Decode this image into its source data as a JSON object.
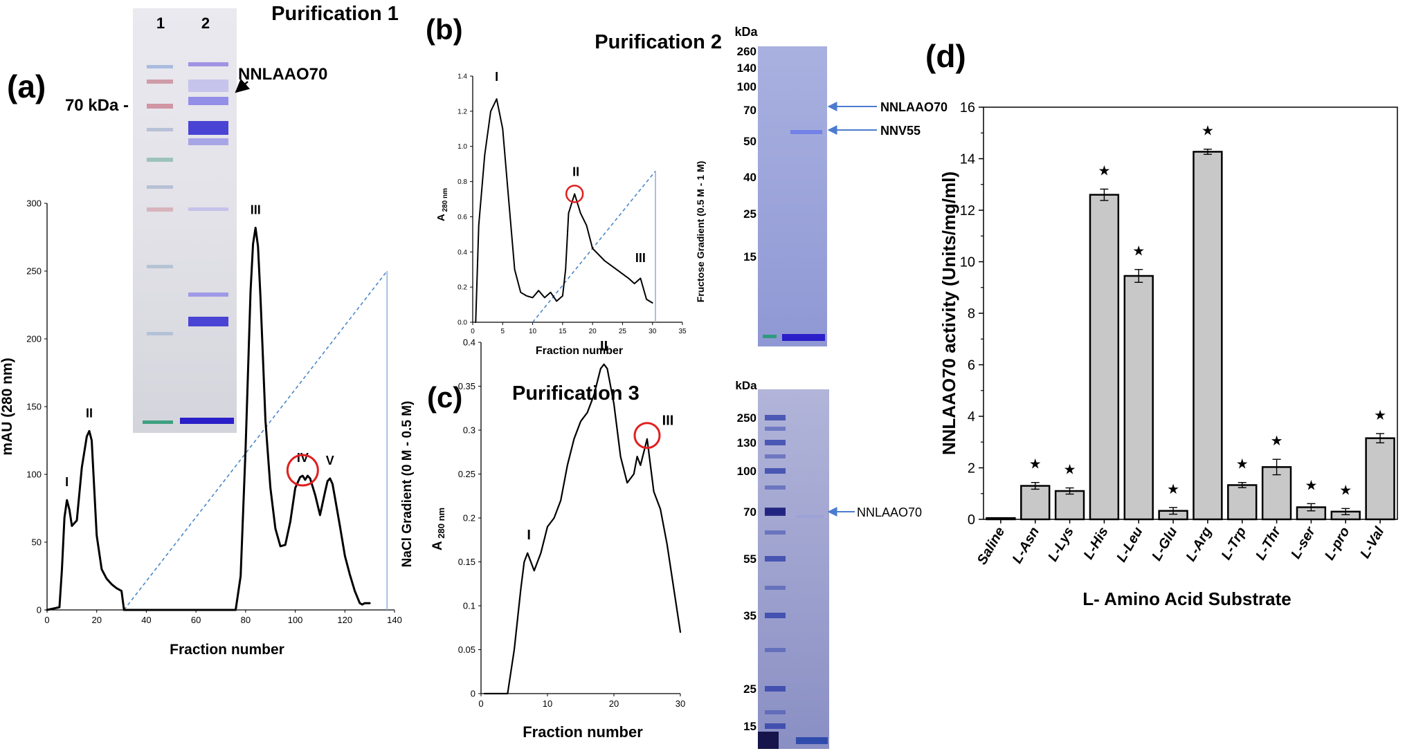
{
  "panel_labels": {
    "a": "(a)",
    "b": "(b)",
    "c": "(c)",
    "d": "(d)"
  },
  "panel_a": {
    "title": "Purification 1",
    "gel": {
      "lanes": [
        "1",
        "2"
      ],
      "marker_label": "70 kDa -",
      "band_label": "NNLAAO70"
    },
    "chart_data": {
      "type": "line",
      "xlabel": "Fraction number",
      "ylabel": "mAU (280 nm)",
      "y2label": "NaCl Gradient (0 M - 0.5 M)",
      "xlim": [
        0,
        140
      ],
      "ylim": [
        0,
        300
      ],
      "xticks": [
        "0",
        "20",
        "40",
        "60",
        "80",
        "100",
        "120",
        "140"
      ],
      "yticks": [
        "0",
        "50",
        "100",
        "150",
        "200",
        "250",
        "300"
      ],
      "peaks": [
        {
          "label": "I",
          "x": 8,
          "y": 81
        },
        {
          "label": "II",
          "x": 17,
          "y": 132
        },
        {
          "label": "III",
          "x": 84,
          "y": 282
        },
        {
          "label": "IV",
          "x": 103,
          "y": 99
        },
        {
          "label": "V",
          "x": 114,
          "y": 97
        }
      ],
      "series": [
        {
          "x": [
            0,
            5,
            6,
            7,
            8,
            9,
            10,
            12,
            14,
            16,
            17,
            18,
            19,
            20,
            22,
            24,
            26,
            28,
            30,
            31,
            76,
            78,
            80,
            82,
            83,
            84,
            85,
            86,
            87,
            88,
            90,
            92,
            94,
            96,
            98,
            100,
            102,
            103,
            104,
            105,
            106,
            108,
            110,
            112,
            113,
            114,
            115,
            116,
            118,
            120,
            122,
            124,
            126,
            127,
            128,
            130
          ],
          "y": [
            0,
            2,
            30,
            68,
            81,
            74,
            62,
            66,
            105,
            128,
            132,
            125,
            90,
            55,
            30,
            23,
            19,
            16,
            14,
            0,
            0,
            25,
            120,
            235,
            270,
            282,
            268,
            230,
            185,
            140,
            90,
            60,
            47,
            48,
            65,
            90,
            98,
            99,
            96,
            99,
            97,
            85,
            70,
            87,
            95,
            97,
            93,
            83,
            62,
            40,
            26,
            14,
            5,
            4,
            5,
            5
          ]
        }
      ],
      "gradient_line": {
        "x": [
          31,
          137
        ],
        "y": [
          0,
          250
        ]
      }
    }
  },
  "panel_b": {
    "title": "Purification 2",
    "gel": {
      "unit": "kDa",
      "markers": [
        "260",
        "140",
        "100",
        "70",
        "50",
        "40",
        "25",
        "15"
      ],
      "band_labels": [
        "NNLAAO70",
        "NNV55"
      ]
    },
    "chart_data": {
      "type": "line",
      "xlabel": "Fraction number",
      "ylabel_main": "A",
      "ylabel_sub": "280 nm",
      "y2label": "Fructose Gradient (0.5 M - 1 M)",
      "xlim": [
        0,
        35
      ],
      "ylim": [
        0,
        1.4
      ],
      "xticks": [
        "0",
        "5",
        "10",
        "15",
        "20",
        "25",
        "30",
        "35"
      ],
      "yticks": [
        "0.0",
        "0.2",
        "0.4",
        "0.6",
        "0.8",
        "1.0",
        "1.2",
        "1.4"
      ],
      "peaks": [
        {
          "label": "I",
          "x": 4,
          "y": 1.27
        },
        {
          "label": "II",
          "x": 17,
          "y": 0.73
        },
        {
          "label": "III",
          "x": 28,
          "y": 0.24
        }
      ],
      "series": [
        {
          "x": [
            0.5,
            1,
            2,
            3,
            4,
            5,
            6,
            7,
            8,
            9,
            10,
            11,
            12,
            13,
            14,
            15,
            15.5,
            16,
            17,
            18,
            19,
            20,
            22,
            24,
            26,
            27,
            28,
            29,
            30
          ],
          "y": [
            0,
            0.55,
            0.95,
            1.2,
            1.27,
            1.1,
            0.7,
            0.3,
            0.17,
            0.15,
            0.14,
            0.18,
            0.14,
            0.17,
            0.12,
            0.15,
            0.3,
            0.62,
            0.73,
            0.62,
            0.55,
            0.42,
            0.35,
            0.3,
            0.25,
            0.22,
            0.25,
            0.13,
            0.11
          ]
        }
      ],
      "gradient_line": {
        "x": [
          10,
          30.5
        ],
        "y": [
          0,
          0.86
        ]
      }
    }
  },
  "panel_c": {
    "title": "Purification 3",
    "gel": {
      "unit": "kDa",
      "markers": [
        "250",
        "130",
        "100",
        "70",
        "55",
        "35",
        "25",
        "15"
      ],
      "band_label": "NNLAAO70"
    },
    "chart_data": {
      "type": "line",
      "xlabel": "Fraction number",
      "ylabel_main": "A",
      "ylabel_sub": "280 nm",
      "xlim": [
        0,
        30
      ],
      "ylim": [
        0,
        0.4
      ],
      "xticks": [
        "0",
        "10",
        "20",
        "30"
      ],
      "yticks": [
        "0",
        "0.05",
        "0.1",
        "0.15",
        "0.2",
        "0.25",
        "0.3",
        "0.35",
        "0.4"
      ],
      "peaks": [
        {
          "label": "I",
          "x": 7,
          "y": 0.16
        },
        {
          "label": "II",
          "x": 18.5,
          "y": 0.375
        },
        {
          "label": "III",
          "x": 25,
          "y": 0.29
        }
      ],
      "series": [
        {
          "x": [
            0.5,
            3.5,
            4,
            5,
            6,
            6.5,
            7,
            8,
            9,
            10,
            11,
            12,
            13,
            14,
            15,
            16,
            17,
            18,
            18.5,
            19,
            20,
            21,
            22,
            23,
            23.5,
            24,
            25,
            25.5,
            26,
            27,
            28,
            29,
            30
          ],
          "y": [
            0,
            0,
            0,
            0.05,
            0.12,
            0.15,
            0.16,
            0.14,
            0.16,
            0.19,
            0.2,
            0.22,
            0.26,
            0.29,
            0.31,
            0.32,
            0.34,
            0.37,
            0.375,
            0.37,
            0.33,
            0.27,
            0.24,
            0.25,
            0.27,
            0.26,
            0.29,
            0.26,
            0.23,
            0.21,
            0.17,
            0.12,
            0.07
          ]
        }
      ]
    }
  },
  "panel_d": {
    "chart_data": {
      "type": "bar",
      "ylabel": "NNLAAO70 activity (Units/mg/ml)",
      "xlabel": "L- Amino Acid Substrate",
      "ylim": [
        0,
        16
      ],
      "yticks": [
        "0",
        "2",
        "4",
        "6",
        "8",
        "10",
        "12",
        "14",
        "16"
      ],
      "categories": [
        "Saline",
        "L-Asn",
        "L-Lys",
        "L-His",
        "L-Leu",
        "L-Glu",
        "L-Arg",
        "L-Trp",
        "L-Thr",
        "L-ser",
        "L-pro",
        "L-Val"
      ],
      "values": [
        0.05,
        1.3,
        1.1,
        12.6,
        9.45,
        0.33,
        14.27,
        1.33,
        2.03,
        0.47,
        0.3,
        3.15
      ],
      "errors": [
        0,
        0.13,
        0.12,
        0.22,
        0.25,
        0.13,
        0.1,
        0.1,
        0.3,
        0.14,
        0.12,
        0.18
      ],
      "significant": [
        false,
        true,
        true,
        true,
        true,
        true,
        true,
        true,
        true,
        true,
        true,
        true
      ],
      "bar_color": "#c8c8c8",
      "star_color": "#2e4d8f",
      "star_symbol": "★"
    }
  }
}
